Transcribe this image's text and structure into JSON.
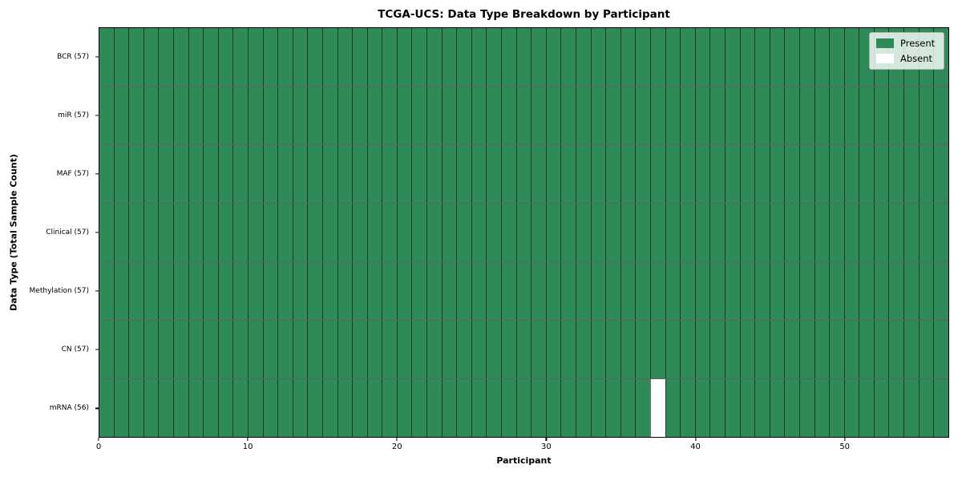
{
  "chart_data": {
    "type": "heatmap",
    "title": "TCGA-UCS: Data Type Breakdown by Participant",
    "xlabel": "Participant",
    "ylabel": "Data Type (Total Sample Count)",
    "n_participants": 57,
    "x_ticks": [
      0,
      10,
      20,
      30,
      40,
      50
    ],
    "rows": [
      {
        "label": "BCR (57)",
        "data_type": "BCR",
        "count": 57,
        "absent_participants": []
      },
      {
        "label": "miR (57)",
        "data_type": "miR",
        "count": 57,
        "absent_participants": []
      },
      {
        "label": "MAF (57)",
        "data_type": "MAF",
        "count": 57,
        "absent_participants": []
      },
      {
        "label": "Clinical (57)",
        "data_type": "Clinical",
        "count": 57,
        "absent_participants": []
      },
      {
        "label": "Methylation (57)",
        "data_type": "Methylation",
        "count": 57,
        "absent_participants": []
      },
      {
        "label": "CN (57)",
        "data_type": "CN",
        "count": 57,
        "absent_participants": []
      },
      {
        "label": "mRNA (56)",
        "data_type": "mRNA",
        "count": 56,
        "absent_participants": [
          37
        ]
      }
    ],
    "legend": {
      "position": "upper right",
      "entries": [
        {
          "label": "Present",
          "color": "#2e8b57"
        },
        {
          "label": "Absent",
          "color": "#ffffff"
        }
      ]
    },
    "colors": {
      "present": "#2e8b57",
      "absent": "#ffffff",
      "cell_edge": "rgba(0,0,0,0.55)",
      "spine": "#000000",
      "background": "#ffffff"
    },
    "grid": "cell-borders-on",
    "xlim": [
      0,
      57
    ]
  }
}
